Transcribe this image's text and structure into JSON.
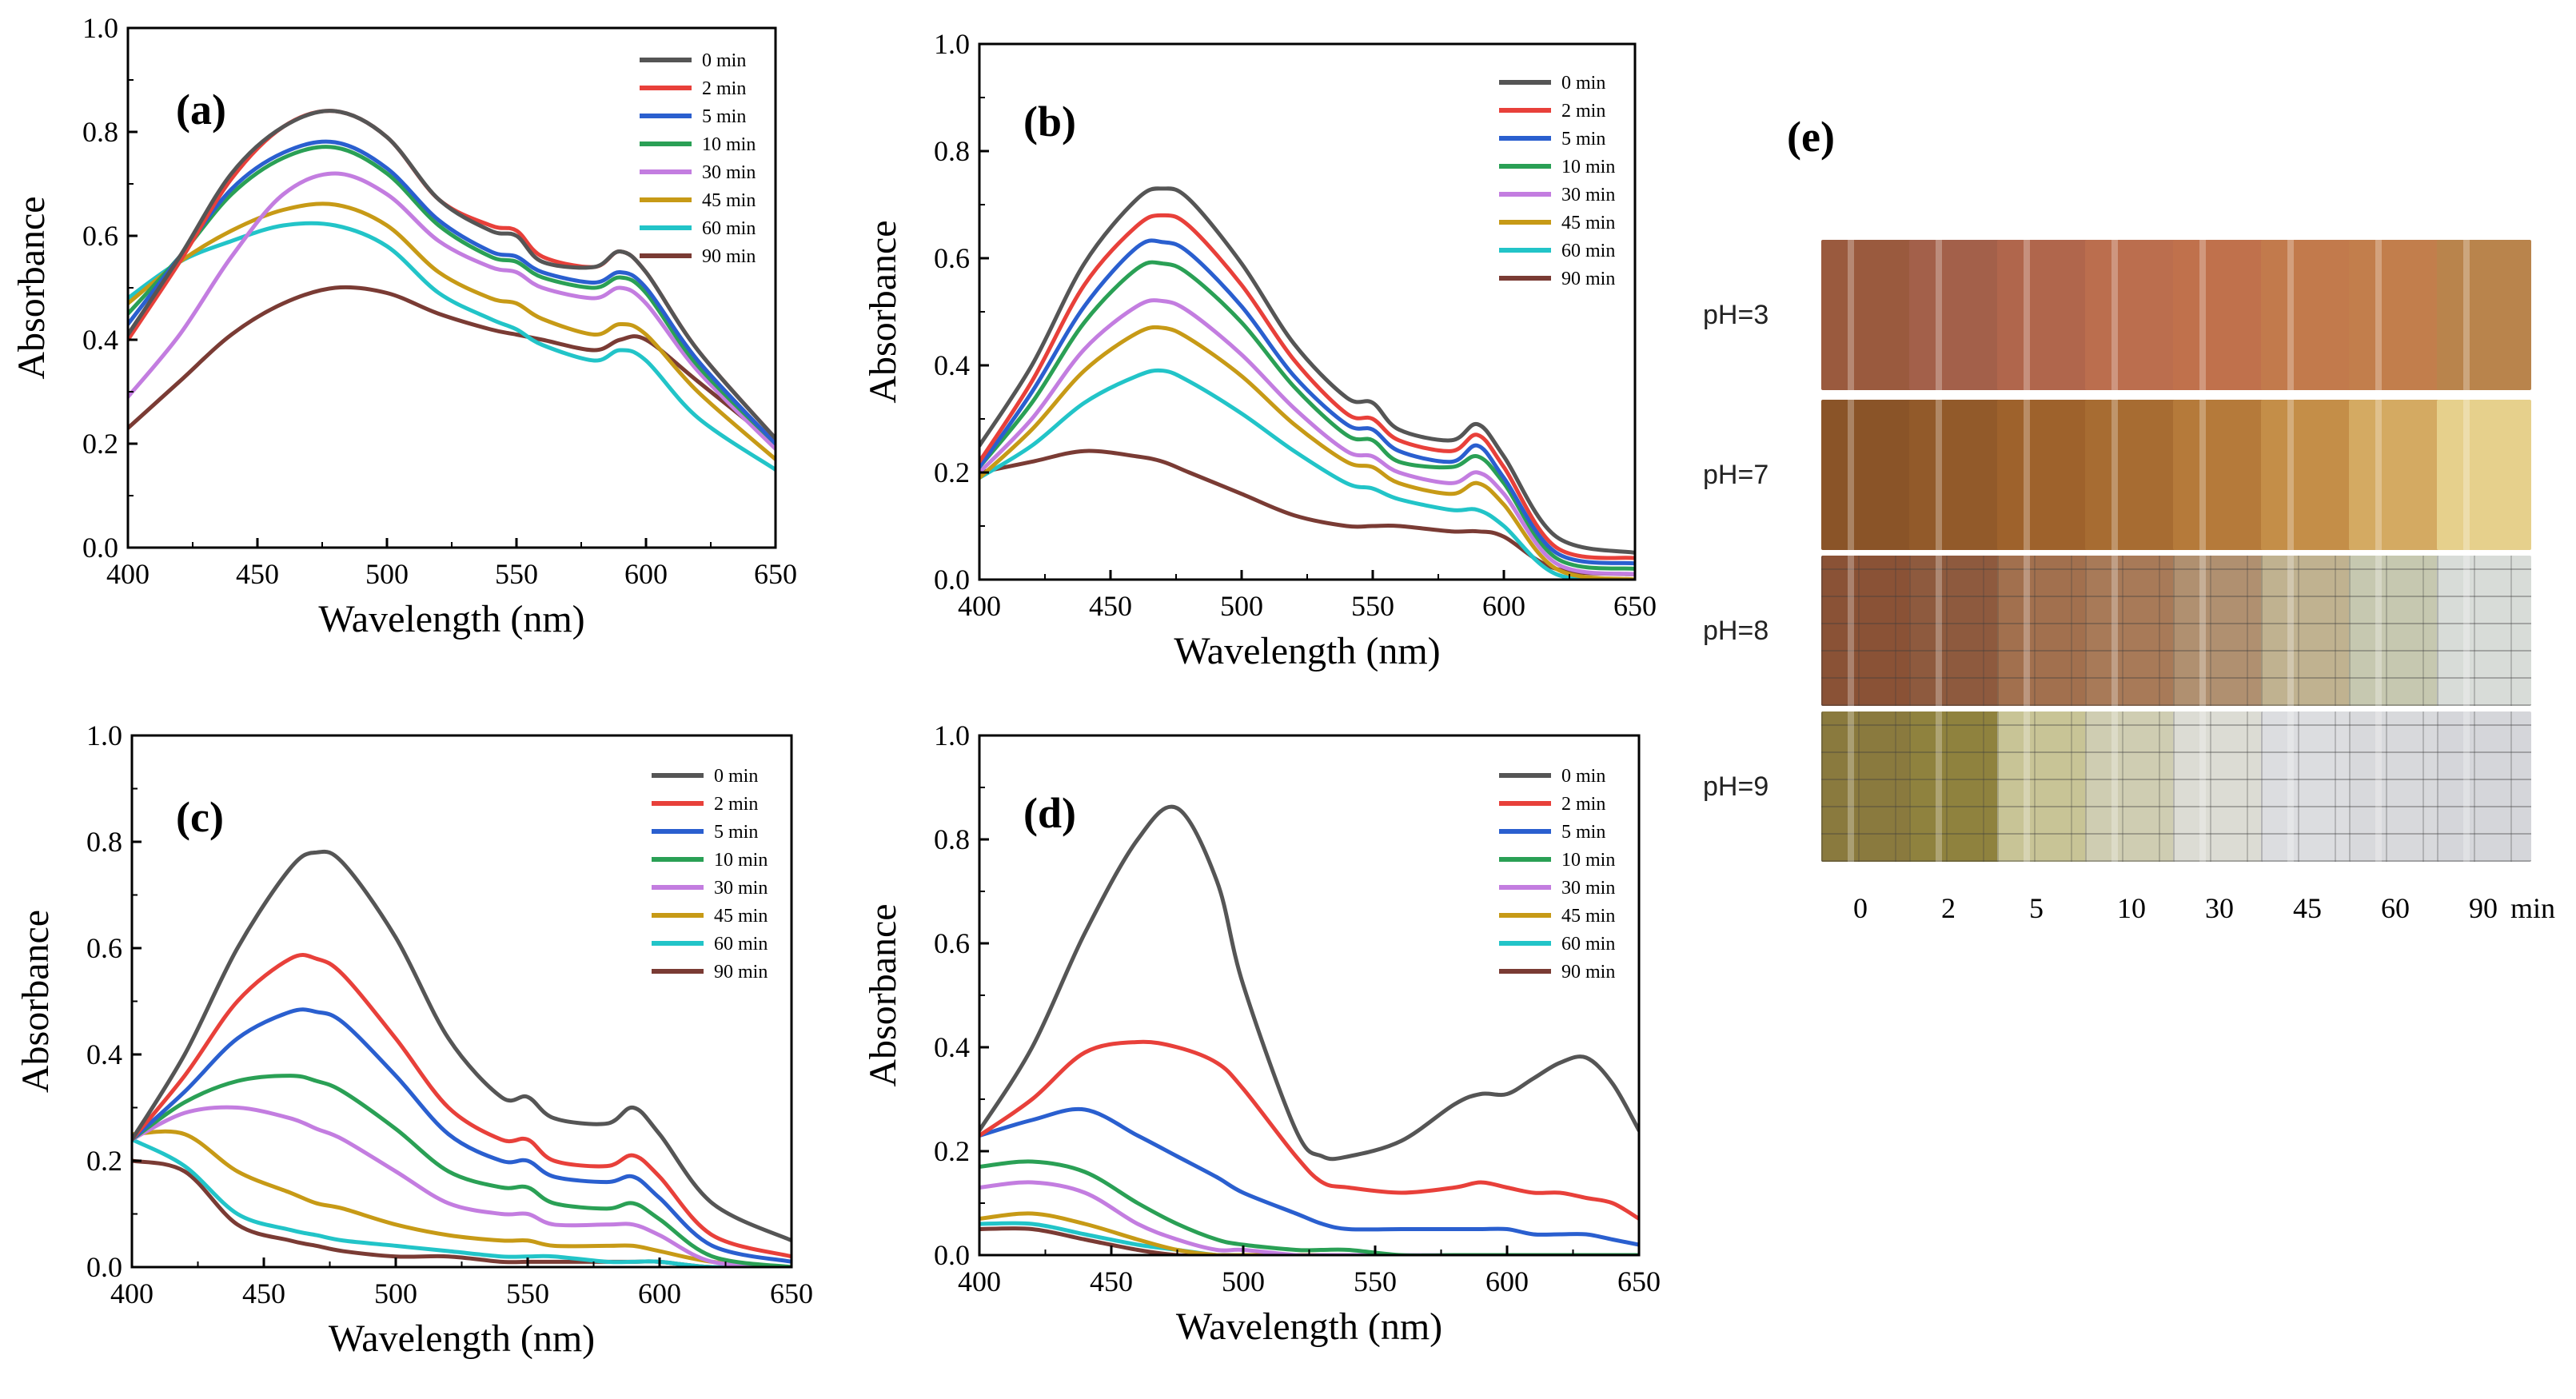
{
  "chart_data": [
    {
      "type": "line",
      "panel": "(a)",
      "xlabel": "Wavelength (nm)",
      "ylabel": "Absorbance",
      "xlim": [
        400,
        650
      ],
      "ylim": [
        0.0,
        1.0
      ],
      "xticks": [
        "400",
        "450",
        "500",
        "550",
        "600",
        "650"
      ],
      "yticks": [
        "0.0",
        "0.2",
        "0.4",
        "0.6",
        "0.8",
        "1.0"
      ],
      "legend": "top-right",
      "x": [
        400,
        420,
        440,
        460,
        480,
        500,
        520,
        540,
        550,
        560,
        580,
        590,
        600,
        620,
        650
      ],
      "series": [
        {
          "name": "0 min",
          "color": "#555555",
          "values": [
            0.41,
            0.56,
            0.72,
            0.81,
            0.84,
            0.79,
            0.67,
            0.61,
            0.6,
            0.55,
            0.54,
            0.57,
            0.53,
            0.38,
            0.21
          ]
        },
        {
          "name": "2 min",
          "color": "#e8403a",
          "values": [
            0.4,
            0.55,
            0.71,
            0.81,
            0.84,
            0.79,
            0.67,
            0.62,
            0.61,
            0.56,
            0.54,
            0.57,
            0.53,
            0.38,
            0.21
          ]
        },
        {
          "name": "5 min",
          "color": "#2a5fcf",
          "values": [
            0.43,
            0.56,
            0.69,
            0.76,
            0.78,
            0.73,
            0.63,
            0.57,
            0.56,
            0.53,
            0.51,
            0.53,
            0.5,
            0.36,
            0.2
          ]
        },
        {
          "name": "10 min",
          "color": "#2aa055",
          "values": [
            0.45,
            0.56,
            0.68,
            0.75,
            0.77,
            0.72,
            0.62,
            0.56,
            0.55,
            0.52,
            0.5,
            0.52,
            0.49,
            0.35,
            0.2
          ]
        },
        {
          "name": "30 min",
          "color": "#c37de0",
          "values": [
            0.29,
            0.41,
            0.56,
            0.68,
            0.72,
            0.68,
            0.59,
            0.54,
            0.53,
            0.5,
            0.48,
            0.5,
            0.47,
            0.34,
            0.19
          ]
        },
        {
          "name": "45 min",
          "color": "#c79a16",
          "values": [
            0.47,
            0.55,
            0.61,
            0.65,
            0.66,
            0.62,
            0.53,
            0.48,
            0.47,
            0.44,
            0.41,
            0.43,
            0.41,
            0.3,
            0.17
          ]
        },
        {
          "name": "60 min",
          "color": "#22c4c8",
          "values": [
            0.48,
            0.55,
            0.59,
            0.62,
            0.62,
            0.58,
            0.49,
            0.44,
            0.42,
            0.39,
            0.36,
            0.38,
            0.36,
            0.25,
            0.15
          ]
        },
        {
          "name": "90 min",
          "color": "#7a3b34",
          "values": [
            0.23,
            0.32,
            0.41,
            0.47,
            0.5,
            0.49,
            0.45,
            0.42,
            0.41,
            0.4,
            0.38,
            0.4,
            0.4,
            0.32,
            0.2
          ]
        }
      ]
    },
    {
      "type": "line",
      "panel": "(b)",
      "xlabel": "Wavelength (nm)",
      "ylabel": "Absorbance",
      "xlim": [
        400,
        650
      ],
      "ylim": [
        0.0,
        1.0
      ],
      "xticks": [
        "400",
        "450",
        "500",
        "550",
        "600",
        "650"
      ],
      "yticks": [
        "0.0",
        "0.2",
        "0.4",
        "0.6",
        "0.8",
        "1.0"
      ],
      "legend": "top-right",
      "x": [
        400,
        420,
        440,
        460,
        470,
        480,
        500,
        520,
        540,
        550,
        560,
        580,
        590,
        600,
        620,
        650
      ],
      "series": [
        {
          "name": "0 min",
          "color": "#555555",
          "values": [
            0.25,
            0.4,
            0.59,
            0.71,
            0.73,
            0.71,
            0.59,
            0.44,
            0.34,
            0.33,
            0.28,
            0.26,
            0.29,
            0.23,
            0.08,
            0.05
          ]
        },
        {
          "name": "2 min",
          "color": "#e8403a",
          "values": [
            0.22,
            0.37,
            0.55,
            0.66,
            0.68,
            0.66,
            0.55,
            0.41,
            0.31,
            0.3,
            0.26,
            0.24,
            0.27,
            0.21,
            0.06,
            0.04
          ]
        },
        {
          "name": "5 min",
          "color": "#2a5fcf",
          "values": [
            0.21,
            0.35,
            0.51,
            0.62,
            0.63,
            0.61,
            0.51,
            0.38,
            0.29,
            0.28,
            0.24,
            0.22,
            0.25,
            0.19,
            0.05,
            0.03
          ]
        },
        {
          "name": "10 min",
          "color": "#2aa055",
          "values": [
            0.21,
            0.33,
            0.48,
            0.58,
            0.59,
            0.57,
            0.48,
            0.36,
            0.27,
            0.26,
            0.22,
            0.21,
            0.23,
            0.18,
            0.04,
            0.02
          ]
        },
        {
          "name": "30 min",
          "color": "#c37de0",
          "values": [
            0.2,
            0.3,
            0.43,
            0.51,
            0.52,
            0.5,
            0.42,
            0.32,
            0.24,
            0.23,
            0.2,
            0.18,
            0.2,
            0.16,
            0.03,
            0.01
          ]
        },
        {
          "name": "45 min",
          "color": "#c79a16",
          "values": [
            0.19,
            0.28,
            0.39,
            0.46,
            0.47,
            0.45,
            0.38,
            0.29,
            0.22,
            0.21,
            0.18,
            0.16,
            0.18,
            0.14,
            0.02,
            0.0
          ]
        },
        {
          "name": "60 min",
          "color": "#22c4c8",
          "values": [
            0.19,
            0.25,
            0.33,
            0.38,
            0.39,
            0.37,
            0.31,
            0.24,
            0.18,
            0.17,
            0.15,
            0.13,
            0.13,
            0.1,
            0.01,
            0.0
          ]
        },
        {
          "name": "90 min",
          "color": "#7a3b34",
          "values": [
            0.2,
            0.22,
            0.24,
            0.23,
            0.22,
            0.2,
            0.16,
            0.12,
            0.1,
            0.1,
            0.1,
            0.09,
            0.09,
            0.08,
            0.02,
            0.01
          ]
        }
      ]
    },
    {
      "type": "line",
      "panel": "(c)",
      "xlabel": "Wavelength (nm)",
      "ylabel": "Absorbance",
      "xlim": [
        400,
        650
      ],
      "ylim": [
        0.0,
        1.0
      ],
      "xticks": [
        "400",
        "450",
        "500",
        "550",
        "600",
        "650"
      ],
      "yticks": [
        "0.0",
        "0.2",
        "0.4",
        "0.6",
        "0.8",
        "1.0"
      ],
      "legend": "top-right",
      "x": [
        400,
        420,
        440,
        460,
        470,
        480,
        500,
        520,
        540,
        550,
        560,
        580,
        590,
        600,
        620,
        650
      ],
      "series": [
        {
          "name": "0 min",
          "color": "#555555",
          "values": [
            0.24,
            0.4,
            0.6,
            0.75,
            0.78,
            0.76,
            0.62,
            0.43,
            0.32,
            0.32,
            0.28,
            0.27,
            0.3,
            0.25,
            0.12,
            0.05
          ]
        },
        {
          "name": "2 min",
          "color": "#e8403a",
          "values": [
            0.24,
            0.36,
            0.5,
            0.58,
            0.58,
            0.55,
            0.43,
            0.3,
            0.24,
            0.24,
            0.2,
            0.19,
            0.21,
            0.17,
            0.06,
            0.02
          ]
        },
        {
          "name": "5 min",
          "color": "#2a5fcf",
          "values": [
            0.24,
            0.33,
            0.43,
            0.48,
            0.48,
            0.46,
            0.36,
            0.25,
            0.2,
            0.2,
            0.17,
            0.16,
            0.17,
            0.13,
            0.04,
            0.01
          ]
        },
        {
          "name": "10 min",
          "color": "#2aa055",
          "values": [
            0.24,
            0.31,
            0.35,
            0.36,
            0.35,
            0.33,
            0.26,
            0.18,
            0.15,
            0.15,
            0.12,
            0.11,
            0.12,
            0.09,
            0.02,
            0.0
          ]
        },
        {
          "name": "30 min",
          "color": "#c37de0",
          "values": [
            0.24,
            0.29,
            0.3,
            0.28,
            0.26,
            0.24,
            0.18,
            0.12,
            0.1,
            0.1,
            0.08,
            0.08,
            0.08,
            0.06,
            0.01,
            0.0
          ]
        },
        {
          "name": "45 min",
          "color": "#c79a16",
          "values": [
            0.25,
            0.25,
            0.18,
            0.14,
            0.12,
            0.11,
            0.08,
            0.06,
            0.05,
            0.05,
            0.04,
            0.04,
            0.04,
            0.03,
            0.01,
            0.0
          ]
        },
        {
          "name": "60 min",
          "color": "#22c4c8",
          "values": [
            0.24,
            0.19,
            0.1,
            0.07,
            0.06,
            0.05,
            0.04,
            0.03,
            0.02,
            0.02,
            0.02,
            0.01,
            0.01,
            0.01,
            0.0,
            0.0
          ]
        },
        {
          "name": "90 min",
          "color": "#7a3b34",
          "values": [
            0.2,
            0.18,
            0.08,
            0.05,
            0.04,
            0.03,
            0.02,
            0.02,
            0.01,
            0.01,
            0.01,
            0.01,
            0.01,
            0.01,
            0.0,
            0.0
          ]
        }
      ]
    },
    {
      "type": "line",
      "panel": "(d)",
      "xlabel": "Wavelength (nm)",
      "ylabel": "Absorbance",
      "xlim": [
        400,
        650
      ],
      "ylim": [
        0.0,
        1.0
      ],
      "xticks": [
        "400",
        "450",
        "500",
        "550",
        "600",
        "650"
      ],
      "yticks": [
        "0.0",
        "0.2",
        "0.4",
        "0.6",
        "0.8",
        "1.0"
      ],
      "legend": "top-right",
      "x": [
        400,
        420,
        440,
        460,
        475,
        490,
        500,
        520,
        530,
        540,
        560,
        580,
        590,
        600,
        610,
        620,
        630,
        640,
        650
      ],
      "series": [
        {
          "name": "0 min",
          "color": "#555555",
          "values": [
            0.24,
            0.4,
            0.62,
            0.8,
            0.86,
            0.72,
            0.52,
            0.24,
            0.19,
            0.19,
            0.22,
            0.29,
            0.31,
            0.31,
            0.34,
            0.37,
            0.38,
            0.33,
            0.24
          ]
        },
        {
          "name": "2 min",
          "color": "#e8403a",
          "values": [
            0.23,
            0.3,
            0.39,
            0.41,
            0.4,
            0.37,
            0.32,
            0.19,
            0.14,
            0.13,
            0.12,
            0.13,
            0.14,
            0.13,
            0.12,
            0.12,
            0.11,
            0.1,
            0.07
          ]
        },
        {
          "name": "5 min",
          "color": "#2a5fcf",
          "values": [
            0.23,
            0.26,
            0.28,
            0.23,
            0.19,
            0.15,
            0.12,
            0.08,
            0.06,
            0.05,
            0.05,
            0.05,
            0.05,
            0.05,
            0.04,
            0.04,
            0.04,
            0.03,
            0.02
          ]
        },
        {
          "name": "10 min",
          "color": "#2aa055",
          "values": [
            0.17,
            0.18,
            0.16,
            0.1,
            0.06,
            0.03,
            0.02,
            0.01,
            0.01,
            0.01,
            0.0,
            0.0,
            0.0,
            0.0,
            0.0,
            0.0,
            0.0,
            0.0,
            0.0
          ]
        },
        {
          "name": "30 min",
          "color": "#c37de0",
          "values": [
            0.13,
            0.14,
            0.12,
            0.06,
            0.03,
            0.01,
            0.01,
            0.0,
            0.0,
            0.0,
            0.0,
            0.0,
            0.0,
            0.0,
            0.0,
            0.0,
            0.0,
            0.0,
            0.0
          ]
        },
        {
          "name": "45 min",
          "color": "#c79a16",
          "values": [
            0.07,
            0.08,
            0.06,
            0.03,
            0.01,
            0.0,
            0.0,
            0.0,
            0.0,
            0.0,
            0.0,
            0.0,
            0.0,
            0.0,
            0.0,
            0.0,
            0.0,
            0.0,
            0.0
          ]
        },
        {
          "name": "60 min",
          "color": "#22c4c8",
          "values": [
            0.06,
            0.06,
            0.04,
            0.02,
            0.01,
            0.0,
            0.0,
            0.0,
            0.0,
            0.0,
            0.0,
            0.0,
            0.0,
            0.0,
            0.0,
            0.0,
            0.0,
            0.0,
            0.0
          ]
        },
        {
          "name": "90 min",
          "color": "#7a3b34",
          "values": [
            0.05,
            0.05,
            0.03,
            0.01,
            0.0,
            0.0,
            0.0,
            0.0,
            0.0,
            0.0,
            0.0,
            0.0,
            0.0,
            0.0,
            0.0,
            0.0,
            0.0,
            0.0,
            0.0
          ]
        }
      ]
    }
  ],
  "photo_grid": {
    "label": "(e)",
    "unit": "min",
    "columns": [
      "0",
      "2",
      "5",
      "10",
      "30",
      "45",
      "60",
      "90"
    ],
    "rows": [
      {
        "label": "pH=3",
        "colors": [
          "#9a5a3e",
          "#a3604a",
          "#b0664c",
          "#bb6e4e",
          "#c0714c",
          "#c27a4c",
          "#c27e4c",
          "#b9844c"
        ]
      },
      {
        "label": "pH=7",
        "colors": [
          "#8a5428",
          "#925a2a",
          "#9e622c",
          "#a76c32",
          "#b57a3a",
          "#c48e48",
          "#d4aa62",
          "#e6d08c"
        ]
      },
      {
        "label": "pH=8",
        "colors": [
          "#8a5236",
          "#8e5a3e",
          "#a2704e",
          "#a87a58",
          "#b09070",
          "#c0b290",
          "#c6c8b0",
          "#d8dcd8"
        ]
      },
      {
        "label": "pH=9",
        "colors": [
          "#8a7a3e",
          "#8f823e",
          "#c8c496",
          "#cfcdb2",
          "#dcdcd4",
          "#dcdde0",
          "#d8d9dc",
          "#d5d6da"
        ]
      }
    ]
  }
}
